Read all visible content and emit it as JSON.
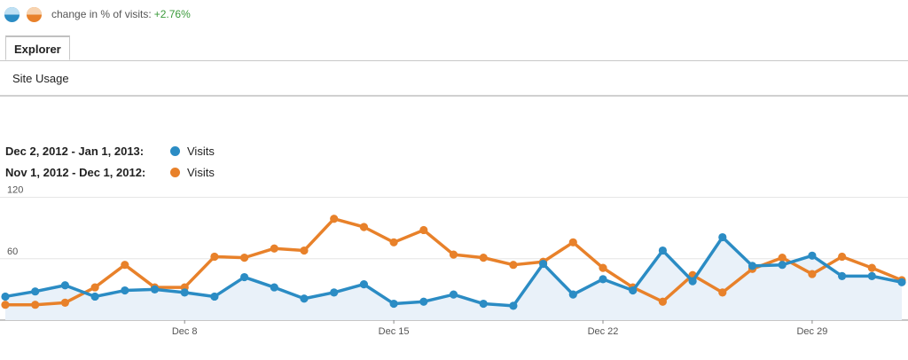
{
  "header": {
    "change_label": "change in % of visits:",
    "change_value": "+2.76%",
    "icons": [
      "pie-blue-icon",
      "pie-orange-icon"
    ]
  },
  "tabs": [
    {
      "label": "Explorer"
    }
  ],
  "subnav": {
    "label": "Site Usage"
  },
  "legend": [
    {
      "range": "Dec 2, 2012 - Jan 1, 2013:",
      "metric": "Visits",
      "color": "#2b8cc4"
    },
    {
      "range": "Nov 1, 2012 - Dec 1, 2012:",
      "metric": "Visits",
      "color": "#e8812a"
    }
  ],
  "chart_data": {
    "type": "line",
    "title": "",
    "xlabel": "",
    "ylabel": "",
    "ylim": [
      0,
      130
    ],
    "y_ticks": [
      60,
      120
    ],
    "x_ticks": [
      {
        "label": "Dec 8",
        "index": 6
      },
      {
        "label": "Dec 15",
        "index": 13
      },
      {
        "label": "Dec 22",
        "index": 20
      },
      {
        "label": "Dec 29",
        "index": 27
      }
    ],
    "series": [
      {
        "name": "Visits",
        "color": "#2b8cc4",
        "filled": true,
        "values": [
          23,
          28,
          34,
          23,
          29,
          30,
          27,
          23,
          42,
          32,
          21,
          27,
          35,
          16,
          18,
          25,
          16,
          14,
          55,
          25,
          40,
          29,
          68,
          38,
          81,
          53,
          54,
          63,
          43,
          43,
          37
        ]
      },
      {
        "name": "Visits",
        "color": "#e8812a",
        "filled": false,
        "values": [
          15,
          15,
          17,
          32,
          54,
          32,
          32,
          62,
          61,
          70,
          68,
          99,
          91,
          76,
          88,
          64,
          61,
          54,
          57,
          76,
          51,
          32,
          18,
          44,
          27,
          50,
          61,
          45,
          62,
          51,
          39
        ]
      }
    ]
  }
}
